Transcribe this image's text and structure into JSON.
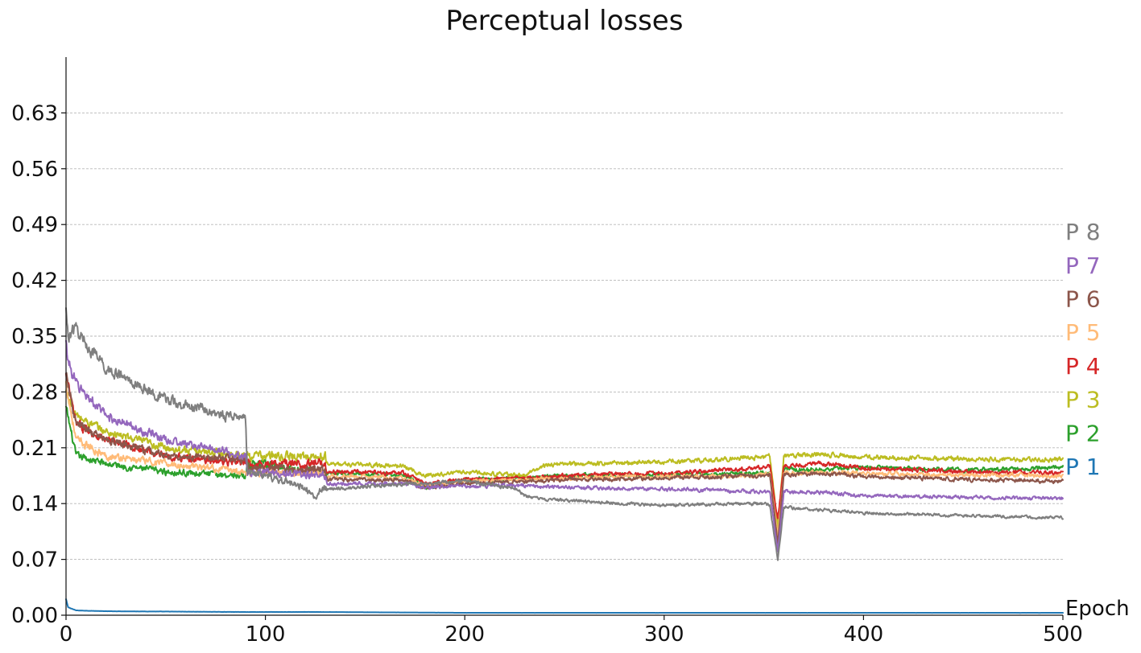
{
  "chart_data": {
    "type": "line",
    "title": "Perceptual losses",
    "xlabel": "Epoch",
    "ylabel": "",
    "xlim": [
      0,
      500
    ],
    "ylim": [
      0,
      0.7
    ],
    "x_ticks": [
      0,
      100,
      200,
      300,
      400,
      500
    ],
    "y_ticks": [
      0.0,
      0.07,
      0.14,
      0.21,
      0.28,
      0.35,
      0.42,
      0.49,
      0.56,
      0.63
    ],
    "y_tick_labels": [
      "0.00",
      "0.07",
      "0.14",
      "0.21",
      "0.28",
      "0.35",
      "0.42",
      "0.49",
      "0.56",
      "0.63"
    ],
    "grid": "horizontal dashed",
    "legend": "inline labels at right end of plot",
    "series": [
      {
        "name": "P 1",
        "color": "#1f77b4",
        "x": [
          0,
          1,
          5,
          20,
          90,
          130,
          200,
          350,
          400,
          500
        ],
        "y": [
          0.02,
          0.01,
          0.006,
          0.005,
          0.004,
          0.004,
          0.003,
          0.003,
          0.003,
          0.003
        ]
      },
      {
        "name": "P 2",
        "color": "#2ca02c",
        "x": [
          0,
          5,
          20,
          50,
          90,
          91,
          130,
          131,
          170,
          175,
          180,
          200,
          230,
          250,
          300,
          350,
          353,
          357,
          360,
          380,
          400,
          450,
          500
        ],
        "y": [
          0.26,
          0.2,
          0.19,
          0.18,
          0.175,
          0.19,
          0.18,
          0.178,
          0.175,
          0.17,
          0.16,
          0.17,
          0.172,
          0.175,
          0.176,
          0.178,
          0.18,
          0.1,
          0.182,
          0.183,
          0.185,
          0.182,
          0.185
        ]
      },
      {
        "name": "P 3",
        "color": "#bcbd22",
        "x": [
          0,
          5,
          20,
          50,
          90,
          91,
          130,
          131,
          170,
          175,
          180,
          200,
          230,
          240,
          250,
          300,
          350,
          353,
          357,
          360,
          380,
          400,
          450,
          500
        ],
        "y": [
          0.28,
          0.25,
          0.23,
          0.21,
          0.2,
          0.2,
          0.198,
          0.19,
          0.187,
          0.18,
          0.175,
          0.18,
          0.175,
          0.188,
          0.19,
          0.192,
          0.198,
          0.2,
          0.11,
          0.2,
          0.202,
          0.198,
          0.196,
          0.195
        ]
      },
      {
        "name": "P 4",
        "color": "#d62728",
        "x": [
          0,
          5,
          20,
          50,
          90,
          91,
          130,
          131,
          170,
          175,
          180,
          200,
          230,
          250,
          300,
          350,
          353,
          357,
          360,
          380,
          400,
          450,
          500
        ],
        "y": [
          0.3,
          0.24,
          0.22,
          0.2,
          0.19,
          0.19,
          0.19,
          0.18,
          0.178,
          0.172,
          0.165,
          0.17,
          0.172,
          0.175,
          0.178,
          0.185,
          0.187,
          0.12,
          0.187,
          0.19,
          0.185,
          0.18,
          0.178
        ]
      },
      {
        "name": "P 5",
        "color": "#ffbb78",
        "x": [
          0,
          5,
          20,
          50,
          90,
          91,
          130,
          131,
          170,
          175,
          180,
          200,
          230,
          250,
          300,
          350,
          353,
          357,
          360,
          380,
          400,
          450,
          500
        ],
        "y": [
          0.29,
          0.22,
          0.2,
          0.19,
          0.18,
          0.18,
          0.178,
          0.175,
          0.172,
          0.168,
          0.162,
          0.168,
          0.17,
          0.172,
          0.174,
          0.176,
          0.178,
          0.1,
          0.178,
          0.179,
          0.178,
          0.176,
          0.175
        ]
      },
      {
        "name": "P 6",
        "color": "#8c564b",
        "x": [
          0,
          5,
          20,
          50,
          90,
          91,
          130,
          131,
          170,
          175,
          180,
          200,
          230,
          250,
          300,
          350,
          353,
          357,
          360,
          380,
          400,
          450,
          500
        ],
        "y": [
          0.3,
          0.24,
          0.22,
          0.2,
          0.195,
          0.185,
          0.182,
          0.17,
          0.17,
          0.165,
          0.16,
          0.165,
          0.168,
          0.17,
          0.172,
          0.175,
          0.177,
          0.09,
          0.176,
          0.178,
          0.174,
          0.17,
          0.168
        ]
      },
      {
        "name": "P 7",
        "color": "#9467bd",
        "x": [
          0,
          1,
          5,
          20,
          50,
          90,
          91,
          130,
          131,
          170,
          175,
          180,
          200,
          230,
          250,
          300,
          350,
          353,
          357,
          360,
          380,
          400,
          450,
          500
        ],
        "y": [
          0.34,
          0.32,
          0.29,
          0.25,
          0.22,
          0.2,
          0.18,
          0.175,
          0.165,
          0.165,
          0.163,
          0.16,
          0.162,
          0.163,
          0.16,
          0.158,
          0.155,
          0.156,
          0.08,
          0.155,
          0.154,
          0.15,
          0.148,
          0.146
        ]
      },
      {
        "name": "P 8",
        "color": "#7f7f7f",
        "x": [
          0,
          1,
          5,
          10,
          20,
          50,
          80,
          90,
          91,
          100,
          120,
          125,
          130,
          131,
          170,
          180,
          200,
          225,
          230,
          240,
          300,
          350,
          353,
          357,
          360,
          380,
          400,
          450,
          500
        ],
        "y": [
          0.38,
          0.35,
          0.36,
          0.34,
          0.31,
          0.27,
          0.25,
          0.25,
          0.18,
          0.175,
          0.16,
          0.15,
          0.16,
          0.158,
          0.165,
          0.165,
          0.168,
          0.16,
          0.15,
          0.145,
          0.138,
          0.14,
          0.138,
          0.07,
          0.135,
          0.132,
          0.128,
          0.125,
          0.122
        ]
      }
    ]
  }
}
